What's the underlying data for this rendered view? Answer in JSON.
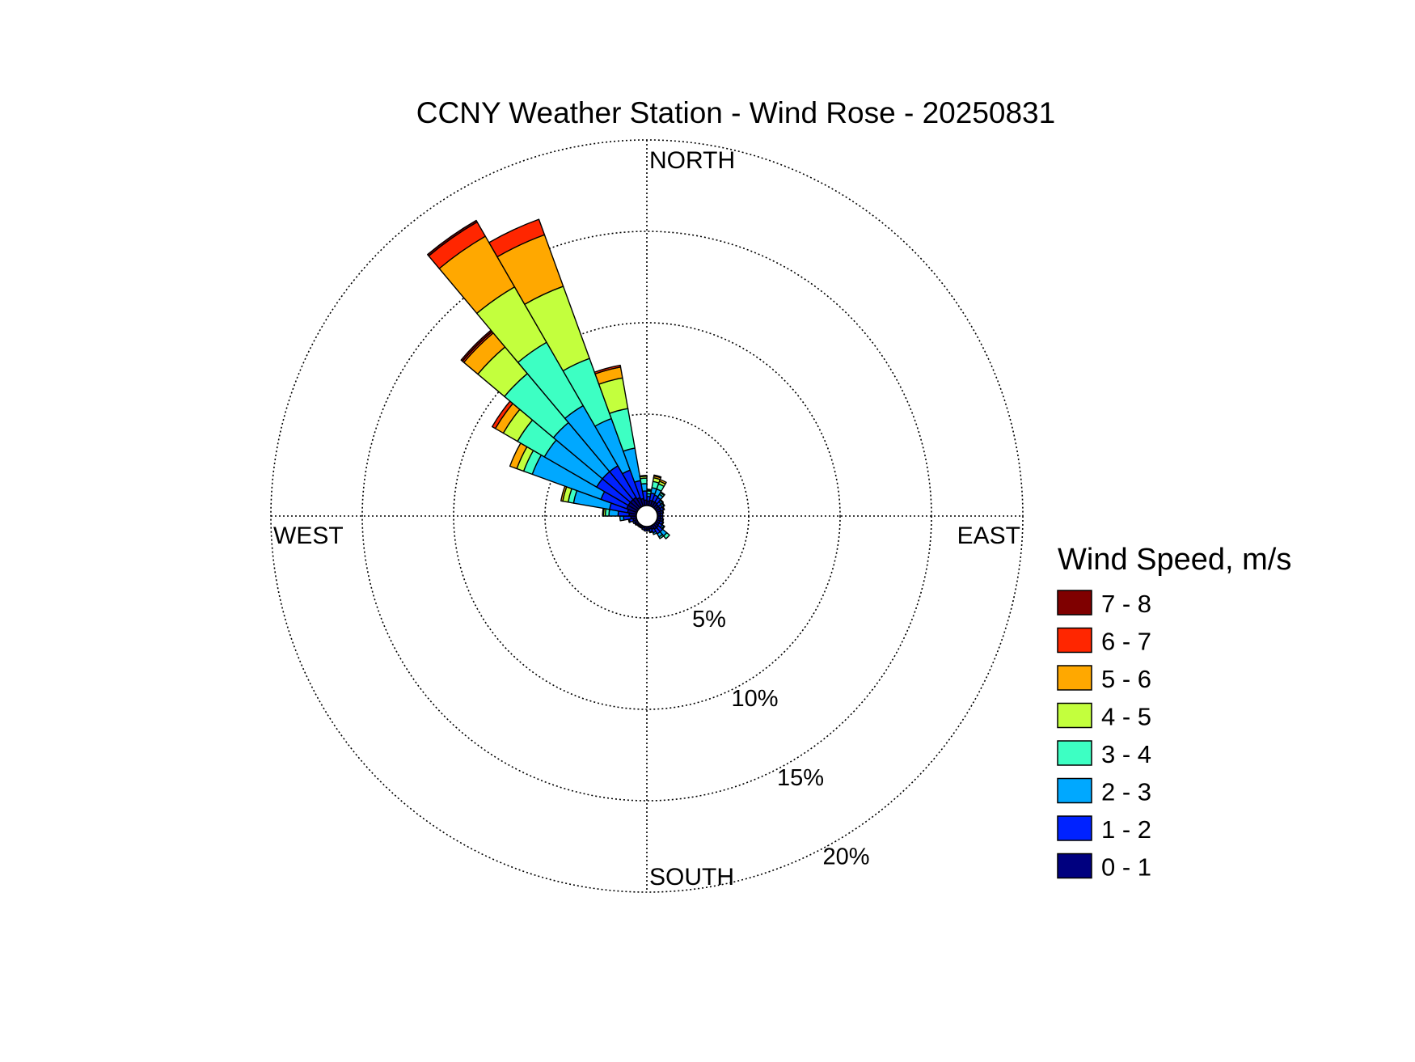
{
  "chart_data": {
    "type": "windrose",
    "title": "CCNY Weather Station - Wind Rose - 20250831",
    "directions_label": {
      "north": "NORTH",
      "east": "EAST",
      "south": "SOUTH",
      "west": "WEST"
    },
    "radial_ticks": [
      5,
      10,
      15,
      20
    ],
    "radial_tick_labels": [
      "5%",
      "10%",
      "15%",
      "20%"
    ],
    "radial_max": 20,
    "legend_title": "Wind Speed, m/s",
    "speed_bins": [
      {
        "label": "0 - 1",
        "color": "#00007f"
      },
      {
        "label": "1 - 2",
        "color": "#0022ff"
      },
      {
        "label": "2 - 3",
        "color": "#00a8ff"
      },
      {
        "label": "3 - 4",
        "color": "#3dffc3"
      },
      {
        "label": "4 - 5",
        "color": "#c3ff3d"
      },
      {
        "label": "5 - 6",
        "color": "#ffa800"
      },
      {
        "label": "6 - 7",
        "color": "#ff2600"
      },
      {
        "label": "7 - 8",
        "color": "#7f0000"
      }
    ],
    "sector_width_deg": 10,
    "sectors": [
      {
        "direction": 5,
        "values": [
          0.25,
          0.25,
          0.15,
          0.15,
          0.05,
          0.02,
          0.02,
          0.0
        ]
      },
      {
        "direction": 15,
        "values": [
          0.3,
          0.4,
          0.3,
          0.35,
          0.2,
          0.1,
          0.05,
          0.0
        ]
      },
      {
        "direction": 25,
        "values": [
          0.3,
          0.35,
          0.35,
          0.3,
          0.15,
          0.1,
          0.0,
          0.0
        ]
      },
      {
        "direction": 35,
        "values": [
          0.3,
          0.3,
          0.2,
          0.1,
          0.05,
          0.0,
          0.0,
          0.0
        ]
      },
      {
        "direction": 45,
        "values": [
          0.25,
          0.2,
          0.1,
          0.05,
          0.0,
          0.0,
          0.0,
          0.0
        ]
      },
      {
        "direction": 55,
        "values": [
          0.25,
          0.15,
          0.1,
          0.05,
          0.0,
          0.0,
          0.0,
          0.0
        ]
      },
      {
        "direction": 65,
        "values": [
          0.25,
          0.15,
          0.05,
          0.0,
          0.0,
          0.0,
          0.0,
          0.0
        ]
      },
      {
        "direction": 75,
        "values": [
          0.2,
          0.1,
          0.05,
          0.0,
          0.0,
          0.0,
          0.0,
          0.0
        ]
      },
      {
        "direction": 85,
        "values": [
          0.2,
          0.1,
          0.0,
          0.0,
          0.0,
          0.0,
          0.0,
          0.0
        ]
      },
      {
        "direction": 95,
        "values": [
          0.2,
          0.1,
          0.0,
          0.0,
          0.0,
          0.0,
          0.0,
          0.0
        ]
      },
      {
        "direction": 105,
        "values": [
          0.2,
          0.1,
          0.05,
          0.0,
          0.0,
          0.0,
          0.0,
          0.0
        ]
      },
      {
        "direction": 115,
        "values": [
          0.2,
          0.15,
          0.05,
          0.0,
          0.0,
          0.0,
          0.0,
          0.0
        ]
      },
      {
        "direction": 125,
        "values": [
          0.2,
          0.2,
          0.1,
          0.05,
          0.0,
          0.0,
          0.0,
          0.0
        ]
      },
      {
        "direction": 135,
        "values": [
          0.25,
          0.3,
          0.3,
          0.2,
          0.0,
          0.0,
          0.0,
          0.0
        ]
      },
      {
        "direction": 145,
        "values": [
          0.25,
          0.3,
          0.2,
          0.1,
          0.0,
          0.0,
          0.0,
          0.0
        ]
      },
      {
        "direction": 155,
        "values": [
          0.2,
          0.2,
          0.1,
          0.0,
          0.0,
          0.0,
          0.0,
          0.0
        ]
      },
      {
        "direction": 165,
        "values": [
          0.15,
          0.15,
          0.05,
          0.0,
          0.0,
          0.0,
          0.0,
          0.0
        ]
      },
      {
        "direction": 175,
        "values": [
          0.15,
          0.1,
          0.0,
          0.0,
          0.0,
          0.0,
          0.0,
          0.0
        ]
      },
      {
        "direction": 185,
        "values": [
          0.15,
          0.1,
          0.0,
          0.0,
          0.0,
          0.0,
          0.0,
          0.0
        ]
      },
      {
        "direction": 195,
        "values": [
          0.1,
          0.1,
          0.0,
          0.0,
          0.0,
          0.0,
          0.0,
          0.0
        ]
      },
      {
        "direction": 205,
        "values": [
          0.1,
          0.05,
          0.0,
          0.0,
          0.0,
          0.0,
          0.0,
          0.0
        ]
      },
      {
        "direction": 215,
        "values": [
          0.1,
          0.05,
          0.0,
          0.0,
          0.0,
          0.0,
          0.0,
          0.0
        ]
      },
      {
        "direction": 225,
        "values": [
          0.1,
          0.05,
          0.0,
          0.0,
          0.0,
          0.0,
          0.0,
          0.0
        ]
      },
      {
        "direction": 235,
        "values": [
          0.15,
          0.05,
          0.0,
          0.0,
          0.0,
          0.0,
          0.0,
          0.0
        ]
      },
      {
        "direction": 245,
        "values": [
          0.15,
          0.1,
          0.0,
          0.0,
          0.0,
          0.0,
          0.0,
          0.0
        ]
      },
      {
        "direction": 255,
        "values": [
          0.2,
          0.2,
          0.05,
          0.0,
          0.0,
          0.0,
          0.0,
          0.0
        ]
      },
      {
        "direction": 265,
        "values": [
          0.3,
          0.4,
          0.2,
          0.0,
          0.0,
          0.0,
          0.0,
          0.0
        ]
      },
      {
        "direction": 275,
        "values": [
          0.4,
          0.6,
          0.5,
          0.2,
          0.1,
          0.05,
          0.0,
          0.0
        ]
      },
      {
        "direction": 285,
        "values": [
          0.5,
          1.0,
          2.0,
          0.3,
          0.3,
          0.1,
          0.0,
          0.0
        ]
      },
      {
        "direction": 295,
        "values": [
          0.6,
          1.5,
          4.0,
          0.5,
          0.4,
          0.4,
          0.0,
          0.0
        ]
      },
      {
        "direction": 305,
        "values": [
          0.6,
          2.0,
          3.3,
          1.7,
          0.9,
          0.5,
          0.2,
          0.0
        ]
      },
      {
        "direction": 315,
        "values": [
          0.6,
          2.0,
          3.5,
          3.5,
          1.9,
          1.0,
          0.1,
          0.1
        ]
      },
      {
        "direction": 325,
        "values": [
          0.6,
          2.0,
          3.8,
          4.0,
          3.5,
          3.2,
          0.9,
          0.1
        ]
      },
      {
        "direction": 335,
        "values": [
          0.5,
          1.6,
          3.0,
          3.5,
          4.2,
          3.0,
          0.9,
          0.0
        ]
      },
      {
        "direction": 345,
        "values": [
          0.4,
          1.0,
          1.8,
          2.2,
          1.7,
          0.6,
          0.1,
          0.0
        ]
      },
      {
        "direction": 355,
        "values": [
          0.3,
          0.5,
          0.4,
          0.3,
          0.1,
          0.05,
          0.0,
          0.0
        ]
      }
    ]
  }
}
